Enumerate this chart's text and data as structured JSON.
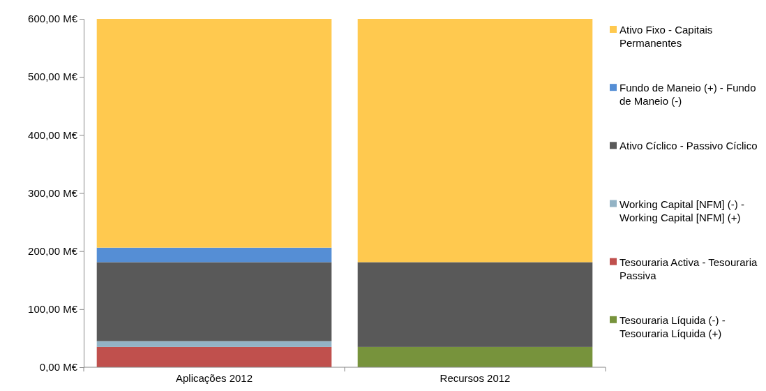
{
  "chart_data": {
    "type": "bar",
    "stacked": true,
    "categories": [
      "Aplicações 2012",
      "Recursos 2012"
    ],
    "series": [
      {
        "name": "Tesouraria Líquida (-) - Tesouraria Líquida (+)",
        "color": "#77933c",
        "values": [
          0,
          35
        ]
      },
      {
        "name": "Tesouraria Activa - Tesouraria Passiva",
        "color": "#c0504d",
        "values": [
          35,
          0
        ]
      },
      {
        "name": "Working Capital [NFM] (-) - Working Capital [NFM] (+)",
        "color": "#93b3c5",
        "values": [
          10,
          0
        ]
      },
      {
        "name": "Ativo Cíclico - Passivo Cíclico",
        "color": "#595959",
        "values": [
          136,
          146
        ]
      },
      {
        "name": "Fundo de Maneio (+) - Fundo de Maneio (-)",
        "color": "#558ed5",
        "values": [
          25,
          0
        ]
      },
      {
        "name": "Ativo Fixo - Capitais Permanentes",
        "color": "#ffc94f",
        "values": [
          394,
          419
        ]
      }
    ],
    "ylim": [
      0,
      600
    ],
    "yticks": [
      {
        "value": 0,
        "label": "0,00 M€"
      },
      {
        "value": 100,
        "label": "100,00 M€"
      },
      {
        "value": 200,
        "label": "200,00 M€"
      },
      {
        "value": 300,
        "label": "300,00 M€"
      },
      {
        "value": 400,
        "label": "400,00 M€"
      },
      {
        "value": 500,
        "label": "500,00 M€"
      },
      {
        "value": 600,
        "label": "600,00 M€"
      }
    ],
    "grid": false,
    "legend": "right"
  }
}
